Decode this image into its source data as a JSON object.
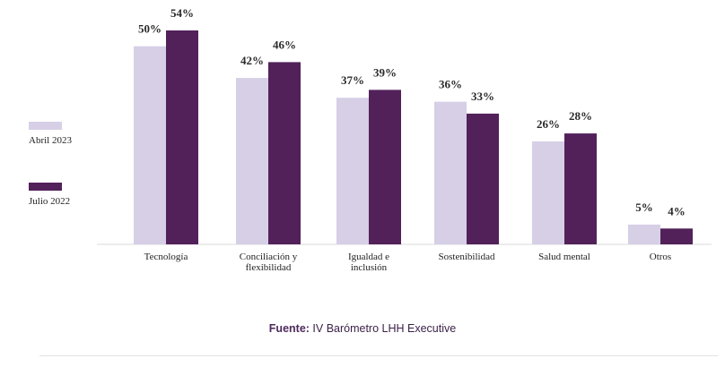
{
  "chart_data": {
    "type": "bar",
    "categories": [
      [
        "Tecnología"
      ],
      [
        "Conciliación y",
        "flexibilidad"
      ],
      [
        "Igualdad e",
        "inclusión"
      ],
      [
        "Sostenibilidad"
      ],
      [
        "Salud mental"
      ],
      [
        "Otros"
      ]
    ],
    "series": [
      {
        "name": "Abril 2023",
        "color": "#d6cfe6",
        "values": [
          50,
          42,
          37,
          36,
          26,
          5
        ],
        "labels": [
          "50%",
          "42%",
          "37%",
          "36%",
          "26%",
          "5%"
        ]
      },
      {
        "name": "Julio 2022",
        "color": "#52215a",
        "values": [
          54,
          46,
          39,
          33,
          28,
          4
        ],
        "labels": [
          "54%",
          "46%",
          "39%",
          "33%",
          "28%",
          "4%"
        ]
      }
    ],
    "ylim": [
      0,
      54
    ],
    "grid": false,
    "legend": "left"
  },
  "source": {
    "label": "Fuente:",
    "text": " IV Barómetro LHH Executive"
  }
}
